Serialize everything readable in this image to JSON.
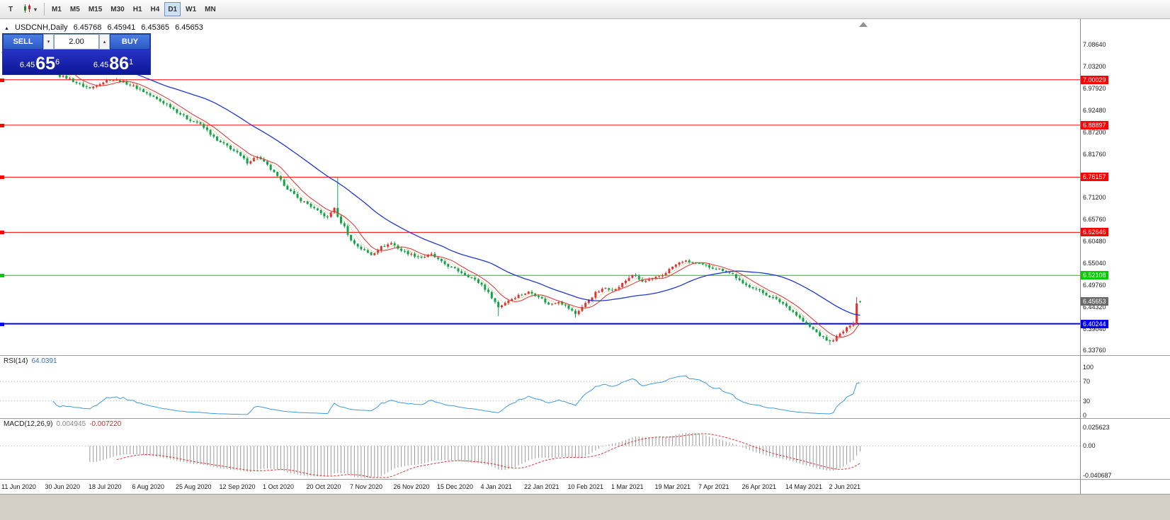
{
  "toolbar": {
    "pointer_tool": "T",
    "chart_type_dropdown": "▾",
    "timeframes": [
      "M1",
      "M5",
      "M15",
      "M30",
      "H1",
      "H4",
      "D1",
      "W1",
      "MN"
    ],
    "active_timeframe": "D1"
  },
  "chart_header": {
    "collapse_icon": "▲",
    "symbol": "USDCNH,Daily",
    "open": "6.45768",
    "high": "6.45941",
    "low": "6.45365",
    "close": "6.45653"
  },
  "trade_panel": {
    "sell_label": "SELL",
    "buy_label": "BUY",
    "volume": "2.00",
    "spinner_up": "▴",
    "spinner_down": "▾",
    "sell_price": {
      "big": "6.45",
      "pips": "65",
      "sup": "6"
    },
    "buy_price": {
      "big": "6.45",
      "pips": "86",
      "sup": "1"
    }
  },
  "chart_data": {
    "type": "candlestick",
    "symbol": "USDCNH",
    "timeframe": "Daily",
    "candle_count": 257,
    "colors": {
      "bull": "#df3333",
      "bear": "#12a347",
      "ma_fast": "#d8a43a",
      "ma_mid": "#e03030",
      "ma_slow": "#2038c8",
      "level_red": "#ff0000",
      "level_green": "#00cc00",
      "level_blue": "#0000ee",
      "current_label_bg": "#6a6a6a"
    },
    "price_path": [
      [
        0,
        7.064
      ],
      [
        3,
        7.072
      ],
      [
        6,
        7.068
      ],
      [
        9,
        7.076
      ],
      [
        12,
        7.07
      ],
      [
        15,
        7.04
      ],
      [
        17,
        7.01
      ],
      [
        20,
        7.002
      ],
      [
        23,
        6.988
      ],
      [
        26,
        6.979
      ],
      [
        29,
        6.992
      ],
      [
        32,
        7.001
      ],
      [
        35,
        6.997
      ],
      [
        38,
        6.988
      ],
      [
        41,
        6.976
      ],
      [
        44,
        6.962
      ],
      [
        47,
        6.948
      ],
      [
        50,
        6.935
      ],
      [
        52,
        6.922
      ],
      [
        55,
        6.905
      ],
      [
        58,
        6.896
      ],
      [
        61,
        6.876
      ],
      [
        64,
        6.85
      ],
      [
        67,
        6.838
      ],
      [
        70,
        6.82
      ],
      [
        73,
        6.798
      ],
      [
        76,
        6.812
      ],
      [
        79,
        6.79
      ],
      [
        82,
        6.762
      ],
      [
        85,
        6.734
      ],
      [
        88,
        6.71
      ],
      [
        91,
        6.696
      ],
      [
        94,
        6.678
      ],
      [
        97,
        6.662
      ],
      [
        99,
        6.688
      ],
      [
        100,
        6.662
      ],
      [
        102,
        6.64
      ],
      [
        104,
        6.606
      ],
      [
        107,
        6.586
      ],
      [
        110,
        6.572
      ],
      [
        113,
        6.59
      ],
      [
        116,
        6.6
      ],
      [
        119,
        6.582
      ],
      [
        122,
        6.572
      ],
      [
        125,
        6.565
      ],
      [
        128,
        6.572
      ],
      [
        131,
        6.553
      ],
      [
        134,
        6.54
      ],
      [
        137,
        6.528
      ],
      [
        140,
        6.515
      ],
      [
        143,
        6.498
      ],
      [
        146,
        6.468
      ],
      [
        148,
        6.443
      ],
      [
        151,
        6.46
      ],
      [
        154,
        6.472
      ],
      [
        157,
        6.48
      ],
      [
        160,
        6.47
      ],
      [
        163,
        6.449
      ],
      [
        166,
        6.458
      ],
      [
        169,
        6.44
      ],
      [
        171,
        6.427
      ],
      [
        174,
        6.452
      ],
      [
        177,
        6.478
      ],
      [
        180,
        6.49
      ],
      [
        183,
        6.486
      ],
      [
        186,
        6.508
      ],
      [
        188,
        6.523
      ],
      [
        191,
        6.505
      ],
      [
        194,
        6.512
      ],
      [
        197,
        6.522
      ],
      [
        200,
        6.542
      ],
      [
        203,
        6.556
      ],
      [
        206,
        6.552
      ],
      [
        209,
        6.546
      ],
      [
        212,
        6.54
      ],
      [
        215,
        6.534
      ],
      [
        218,
        6.524
      ],
      [
        221,
        6.499
      ],
      [
        224,
        6.492
      ],
      [
        227,
        6.478
      ],
      [
        230,
        6.466
      ],
      [
        233,
        6.452
      ],
      [
        236,
        6.432
      ],
      [
        239,
        6.408
      ],
      [
        242,
        6.388
      ],
      [
        245,
        6.368
      ],
      [
        247,
        6.358
      ],
      [
        249,
        6.37
      ],
      [
        251,
        6.384
      ],
      [
        253,
        6.398
      ],
      [
        254,
        6.403
      ],
      [
        255,
        6.452
      ],
      [
        256,
        6.4565
      ]
    ],
    "spikes": [
      {
        "index": 100,
        "high": 6.761
      },
      {
        "index": 148,
        "low": 6.421
      },
      {
        "index": 171,
        "low": 6.418
      },
      {
        "index": 247,
        "low": 6.3505
      },
      {
        "index": 255,
        "high": 6.468
      }
    ],
    "current_candle": {
      "open": 6.45768,
      "high": 6.45941,
      "low": 6.45365,
      "close": 6.45653
    },
    "levels": [
      {
        "price": 7.00029,
        "label": "7.00029",
        "color": "#ff0000",
        "width": 1
      },
      {
        "price": 6.88897,
        "label": "6.88897",
        "color": "#ff0000",
        "width": 1
      },
      {
        "price": 6.76157,
        "label": "6.76157",
        "color": "#ff0000",
        "width": 1
      },
      {
        "price": 6.62646,
        "label": "6.62646",
        "color": "#ff0000",
        "width": 1
      },
      {
        "price": 6.52108,
        "label": "6.52108",
        "color": "#00cc00",
        "width": 1
      },
      {
        "price": 6.40244,
        "label": "6.40244",
        "color": "#0000ee",
        "width": 2
      }
    ],
    "current_price": {
      "value": 6.45653,
      "label": "6.45653"
    },
    "y_ticks": [
      "7.08640",
      "7.03200",
      "6.97920",
      "6.92480",
      "6.87200",
      "6.81760",
      "6.76480",
      "6.71200",
      "6.65760",
      "6.60480",
      "6.55040",
      "6.49760",
      "6.44320",
      "6.39040",
      "6.33760"
    ],
    "x_labels": [
      "11 Jun 2020",
      "30 Jun 2020",
      "18 Jul 2020",
      "6 Aug 2020",
      "25 Aug 2020",
      "12 Sep 2020",
      "1 Oct 2020",
      "20 Oct 2020",
      "7 Nov 2020",
      "26 Nov 2020",
      "15 Dec 2020",
      "4 Jan 2021",
      "22 Jan 2021",
      "10 Feb 2021",
      "1 Mar 2021",
      "19 Mar 2021",
      "7 Apr 2021",
      "26 Apr 2021",
      "14 May 2021",
      "2 Jun 2021"
    ],
    "moving_averages": [
      {
        "period": 5,
        "style": "dotted"
      },
      {
        "period": 8,
        "style": "solid"
      },
      {
        "period": 34,
        "style": "solid"
      }
    ],
    "indicators": {
      "rsi": {
        "label": "RSI(14)",
        "value": "64.0391",
        "period": 14,
        "axis": [
          "100",
          "70",
          "30",
          "0"
        ],
        "guides": [
          70,
          30
        ],
        "color": "#3e9adf"
      },
      "macd": {
        "label": "MACD(12,26,9)",
        "value_main": "0.004945",
        "value_signal": "-0.007220",
        "fast": 12,
        "slow": 26,
        "signal": 9,
        "axis": [
          "0.025623",
          "0.00",
          "-0.040687"
        ],
        "axis_values": [
          0.025623,
          0.0,
          -0.040687
        ],
        "histogram_color": "#9a9a9a",
        "signal_color": "#e03030"
      }
    }
  }
}
